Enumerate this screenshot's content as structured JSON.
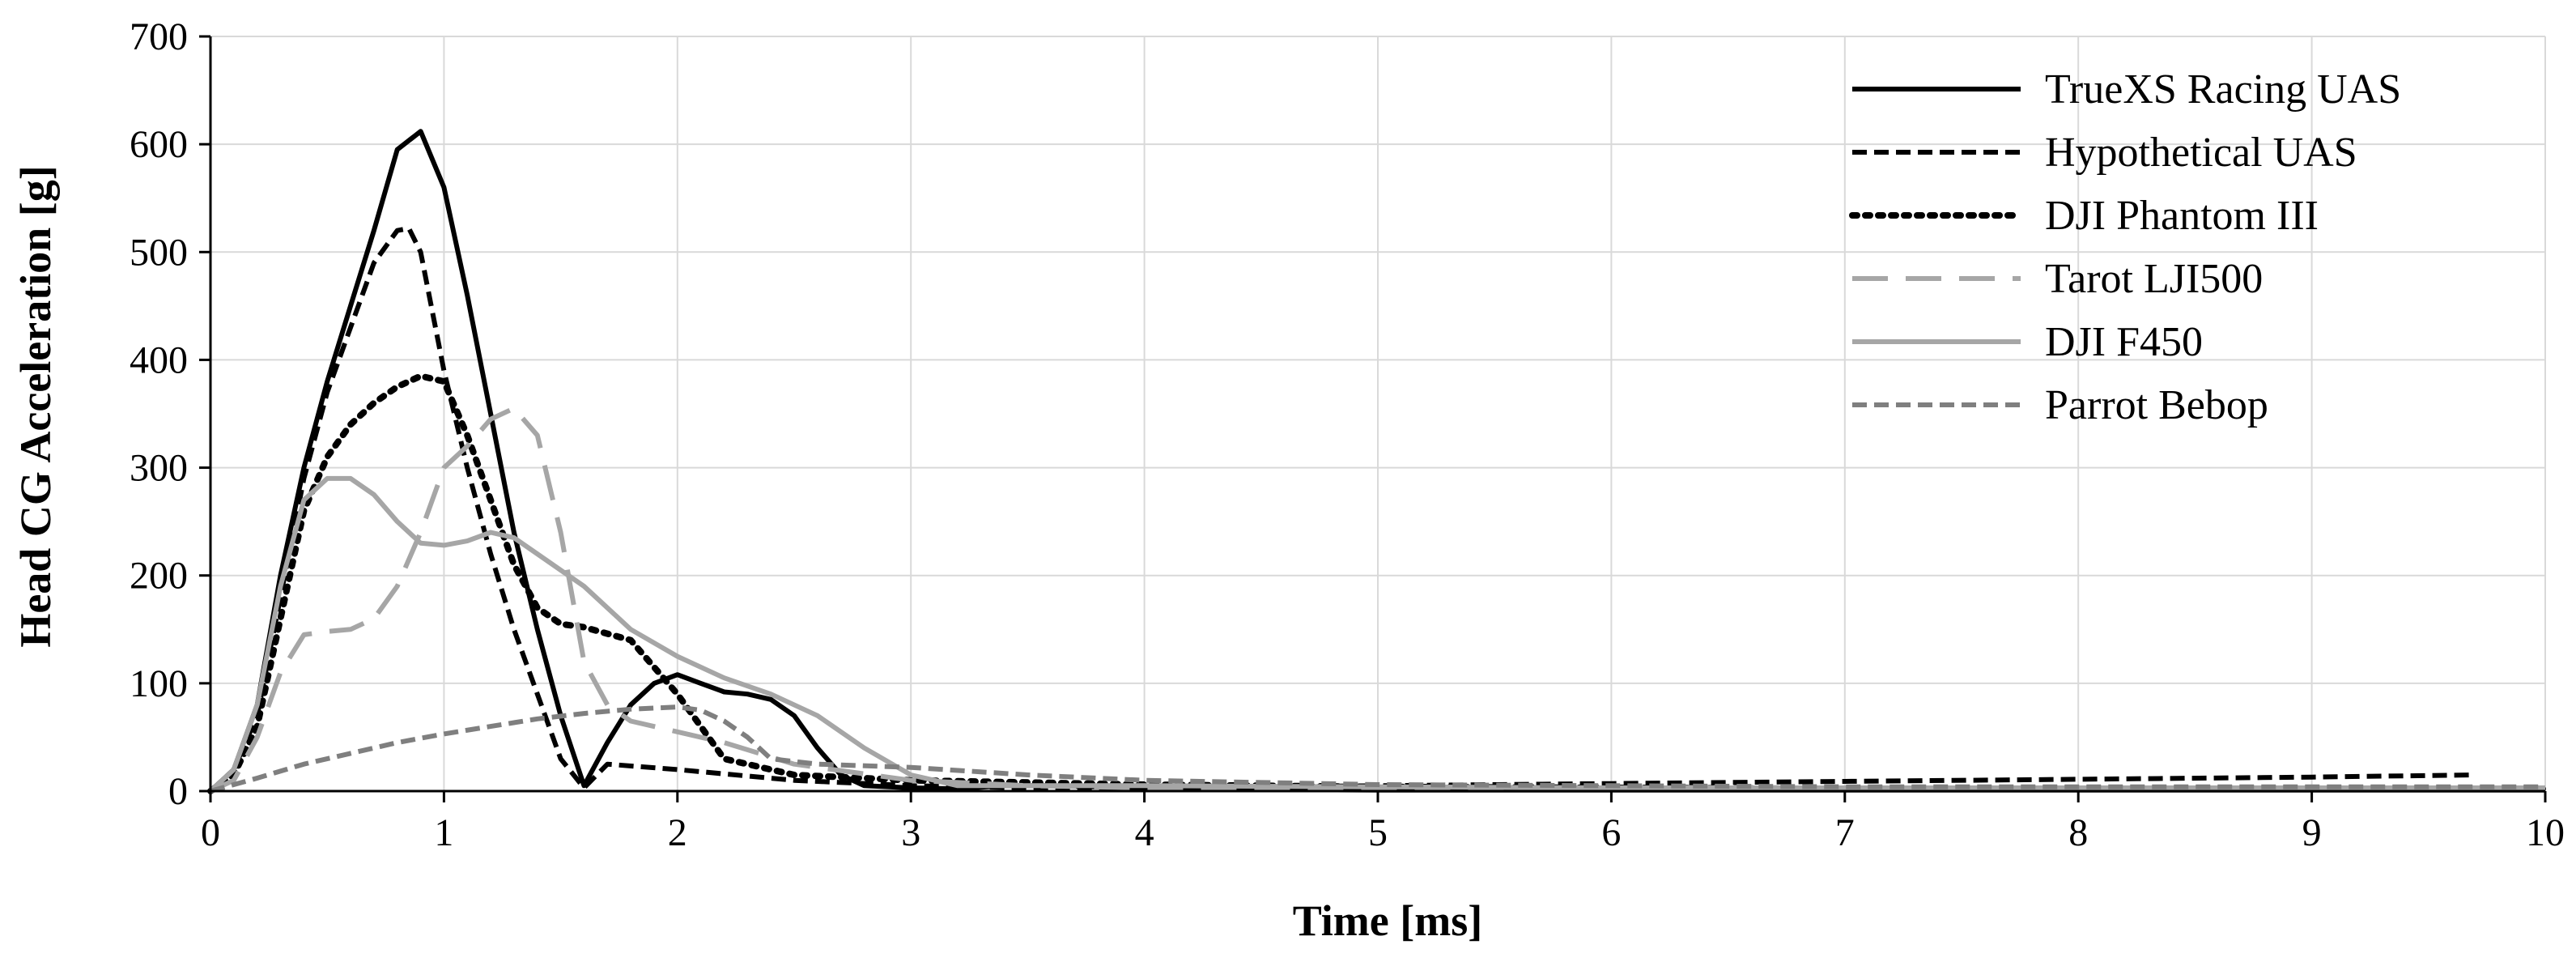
{
  "chart_data": {
    "type": "line",
    "xlabel": "Time [ms]",
    "ylabel": "Head CG Acceleration [g]",
    "xlim": [
      0,
      10
    ],
    "ylim": [
      0,
      700
    ],
    "xticks": [
      "0",
      "1",
      "2",
      "3",
      "4",
      "5",
      "6",
      "7",
      "8",
      "9",
      "10"
    ],
    "yticks": [
      "0",
      "100",
      "200",
      "300",
      "400",
      "500",
      "600",
      "700"
    ],
    "grid": true,
    "legend_position": "top-right",
    "series": [
      {
        "name": "TrueXS Racing UAS",
        "color": "#000000",
        "dash": "solid",
        "x": [
          0,
          0.1,
          0.2,
          0.3,
          0.4,
          0.5,
          0.6,
          0.7,
          0.8,
          0.9,
          1.0,
          1.1,
          1.2,
          1.3,
          1.4,
          1.5,
          1.6,
          1.7,
          1.8,
          1.9,
          2.0,
          2.1,
          2.2,
          2.3,
          2.4,
          2.5,
          2.6,
          2.7,
          2.8,
          3.0,
          3.2,
          3.4,
          3.6,
          3.8,
          4.0,
          5,
          6,
          7,
          8,
          9,
          10
        ],
        "y": [
          0,
          20,
          80,
          200,
          300,
          380,
          450,
          520,
          595,
          612,
          560,
          460,
          350,
          240,
          150,
          70,
          5,
          45,
          80,
          100,
          108,
          100,
          92,
          90,
          85,
          70,
          40,
          15,
          5,
          3,
          2,
          5,
          5,
          4,
          2,
          1,
          1,
          1,
          1,
          1,
          1
        ]
      },
      {
        "name": "Hypothetical UAS",
        "color": "#000000",
        "dash": "dash",
        "x": [
          0,
          0.1,
          0.2,
          0.3,
          0.4,
          0.5,
          0.6,
          0.7,
          0.8,
          0.85,
          0.9,
          1.0,
          1.1,
          1.2,
          1.3,
          1.4,
          1.5,
          1.6,
          1.7,
          2.0,
          2.5,
          3.0,
          3.5,
          4.0,
          5,
          6,
          7,
          8,
          9,
          9.7
        ],
        "y": [
          0,
          20,
          70,
          180,
          290,
          370,
          430,
          490,
          520,
          522,
          500,
          390,
          300,
          220,
          150,
          90,
          30,
          3,
          25,
          20,
          10,
          5,
          3,
          3,
          5,
          7,
          9,
          11,
          13,
          15
        ]
      },
      {
        "name": "DJI Phantom III",
        "color": "#000000",
        "dash": "dot",
        "x": [
          0,
          0.1,
          0.2,
          0.3,
          0.4,
          0.5,
          0.6,
          0.7,
          0.8,
          0.9,
          1.0,
          1.1,
          1.2,
          1.3,
          1.4,
          1.5,
          1.6,
          1.8,
          2.0,
          2.2,
          2.5,
          3.0,
          3.5,
          4.0,
          5,
          6,
          7,
          8,
          9,
          10
        ],
        "y": [
          0,
          15,
          60,
          160,
          260,
          310,
          340,
          360,
          375,
          385,
          380,
          330,
          270,
          210,
          170,
          155,
          152,
          140,
          90,
          30,
          15,
          10,
          8,
          6,
          4,
          3,
          2,
          2,
          2,
          2
        ]
      },
      {
        "name": "Tarot LJI500",
        "color": "#a6a6a6",
        "dash": "longdash",
        "x": [
          0,
          0.1,
          0.2,
          0.3,
          0.4,
          0.5,
          0.6,
          0.7,
          0.8,
          0.9,
          1.0,
          1.1,
          1.2,
          1.3,
          1.4,
          1.5,
          1.6,
          1.7,
          1.8,
          2.0,
          2.2,
          2.5,
          3.0,
          3.5,
          4.0,
          5,
          6,
          7,
          8,
          9,
          10
        ],
        "y": [
          0,
          10,
          50,
          110,
          145,
          148,
          150,
          160,
          190,
          240,
          300,
          320,
          345,
          355,
          330,
          240,
          120,
          80,
          65,
          55,
          45,
          25,
          10,
          5,
          3,
          2,
          2,
          2,
          2,
          2,
          2
        ]
      },
      {
        "name": "DJI F450",
        "color": "#a6a6a6",
        "dash": "solid",
        "x": [
          0,
          0.1,
          0.2,
          0.3,
          0.4,
          0.5,
          0.6,
          0.7,
          0.8,
          0.9,
          1.0,
          1.1,
          1.2,
          1.3,
          1.4,
          1.5,
          1.6,
          1.8,
          2.0,
          2.2,
          2.4,
          2.6,
          2.8,
          3.0,
          3.2,
          3.5,
          4.0,
          5,
          6,
          7,
          8,
          9,
          10
        ],
        "y": [
          0,
          20,
          80,
          190,
          270,
          290,
          290,
          275,
          250,
          230,
          228,
          232,
          240,
          235,
          220,
          205,
          190,
          150,
          125,
          105,
          90,
          70,
          40,
          15,
          5,
          5,
          5,
          4,
          3,
          3,
          3,
          3,
          3
        ]
      },
      {
        "name": "Parrot Bebop",
        "color": "#7f7f7f",
        "dash": "dash",
        "x": [
          0,
          0.2,
          0.4,
          0.6,
          0.8,
          1.0,
          1.2,
          1.4,
          1.6,
          1.8,
          2.0,
          2.1,
          2.2,
          2.3,
          2.4,
          2.6,
          3.0,
          3.5,
          4.0,
          5,
          6,
          7,
          8,
          9,
          10
        ],
        "y": [
          0,
          12,
          25,
          35,
          45,
          53,
          60,
          67,
          72,
          76,
          78,
          75,
          65,
          50,
          30,
          25,
          22,
          15,
          10,
          6,
          5,
          4,
          4,
          4,
          4
        ]
      }
    ]
  }
}
